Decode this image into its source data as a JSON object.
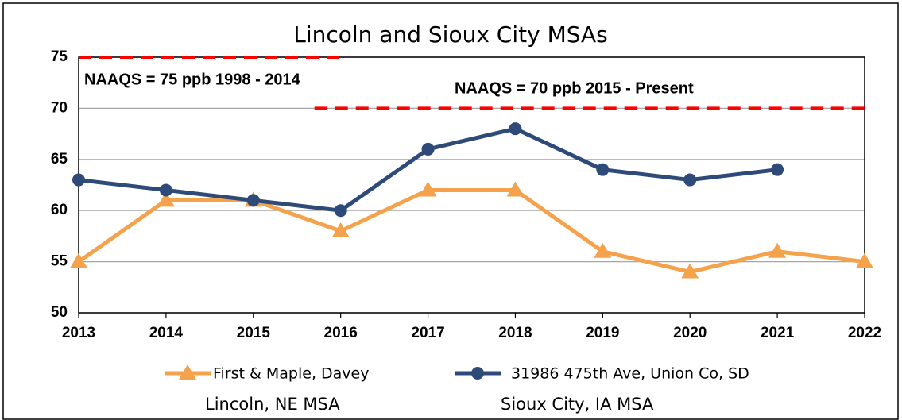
{
  "chart_data": {
    "type": "line",
    "title": "Lincoln and Sioux City MSAs",
    "x": [
      2013,
      2014,
      2015,
      2016,
      2017,
      2018,
      2019,
      2020,
      2021,
      2022
    ],
    "series": [
      {
        "name": "First & Maple, Davey",
        "legend_note": "Lincoln, NE MSA",
        "color": "#f4a24c",
        "marker": "triangle",
        "values": [
          55,
          61,
          61,
          58,
          62,
          62,
          56,
          54,
          56,
          55
        ]
      },
      {
        "name": "31986 475th Ave, Union Co, SD",
        "legend_note": "Sioux City, IA MSA",
        "color": "#2e4a78",
        "marker": "circle",
        "values": [
          63,
          62,
          61,
          60,
          66,
          68,
          64,
          63,
          64,
          null
        ]
      }
    ],
    "standards": [
      {
        "label": "NAAQS = 75 ppb 1998 - 2014",
        "value": 75,
        "x": [
          2013,
          2016
        ],
        "color": "#ff0000"
      },
      {
        "label": "NAAQS = 70 ppb 2015 - Present",
        "value": 70,
        "x": [
          2015.7,
          2022
        ],
        "color": "#ff0000"
      }
    ],
    "xlim": [
      2013,
      2022
    ],
    "xticks": [
      2013,
      2014,
      2015,
      2016,
      2017,
      2018,
      2019,
      2020,
      2021,
      2022
    ],
    "ylim": [
      50,
      75
    ],
    "yticks": [
      50,
      55,
      60,
      65,
      70,
      75
    ],
    "grid": true
  }
}
